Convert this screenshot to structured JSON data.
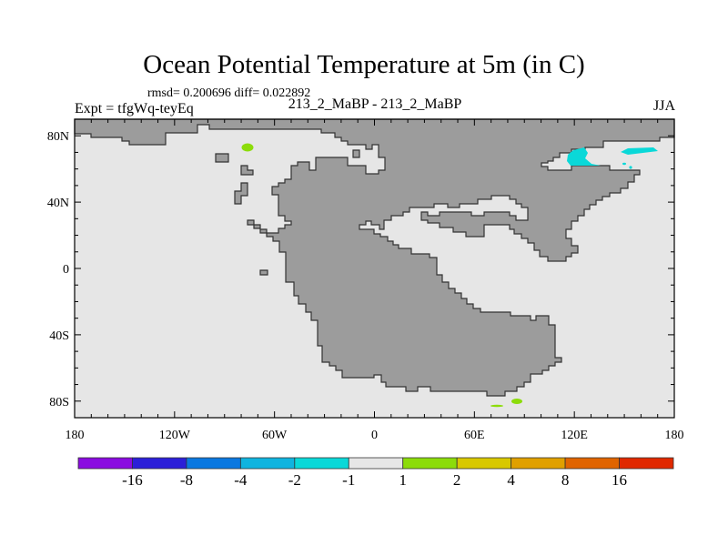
{
  "header": {
    "title": "Ocean Potential Temperature at 5m (in C)",
    "stats": "rmsd= 0.200696 diff= 0.022892",
    "experiment": "Expt = tfgWq-teyEq",
    "comparison": "213_2_MaBP - 213_2_MaBP",
    "season": "JJA"
  },
  "chart_data": {
    "type": "heatmap",
    "title": "Ocean Potential Temperature at 5m (in C)",
    "subtitle": "213_2_MaBP - 213_2_MaBP",
    "xlim": [
      -180,
      180
    ],
    "ylim": [
      -90,
      90
    ],
    "x_ticks": [
      {
        "value": -180,
        "label": "180"
      },
      {
        "value": -120,
        "label": "120W"
      },
      {
        "value": -60,
        "label": "60W"
      },
      {
        "value": 0,
        "label": "0"
      },
      {
        "value": 60,
        "label": "60E"
      },
      {
        "value": 120,
        "label": "120E"
      },
      {
        "value": 180,
        "label": "180"
      }
    ],
    "y_ticks": [
      {
        "value": 80,
        "label": "80N"
      },
      {
        "value": 40,
        "label": "40N"
      },
      {
        "value": 0,
        "label": "0"
      },
      {
        "value": -40,
        "label": "40S"
      },
      {
        "value": -80,
        "label": "80S"
      }
    ],
    "ocean_fill": "#e6e6e6",
    "land_fill": "#9c9c9c",
    "colorbar": {
      "labels": [
        "-16",
        "-8",
        "-4",
        "-2",
        "-1",
        "1",
        "2",
        "4",
        "8",
        "16"
      ],
      "colors": [
        "#8a0be0",
        "#2b1fd8",
        "#0a78e0",
        "#10b4df",
        "#0ad8d8",
        "#e6e6e6",
        "#8cdc0a",
        "#d8c800",
        "#e0a000",
        "#e06400",
        "#e02800"
      ]
    },
    "anomalies": [
      {
        "region": "Arctic, ~120E-150E, ~70N",
        "bin": "-2 to -1",
        "color": "#0ad8d8"
      },
      {
        "region": "North, ~80W, ~75N",
        "bin": "1 to 2",
        "color": "#8cdc0a"
      },
      {
        "region": "Southern Ocean, ~70E-85E, ~82S",
        "bin": "1 to 2",
        "color": "#8cdc0a"
      }
    ]
  }
}
